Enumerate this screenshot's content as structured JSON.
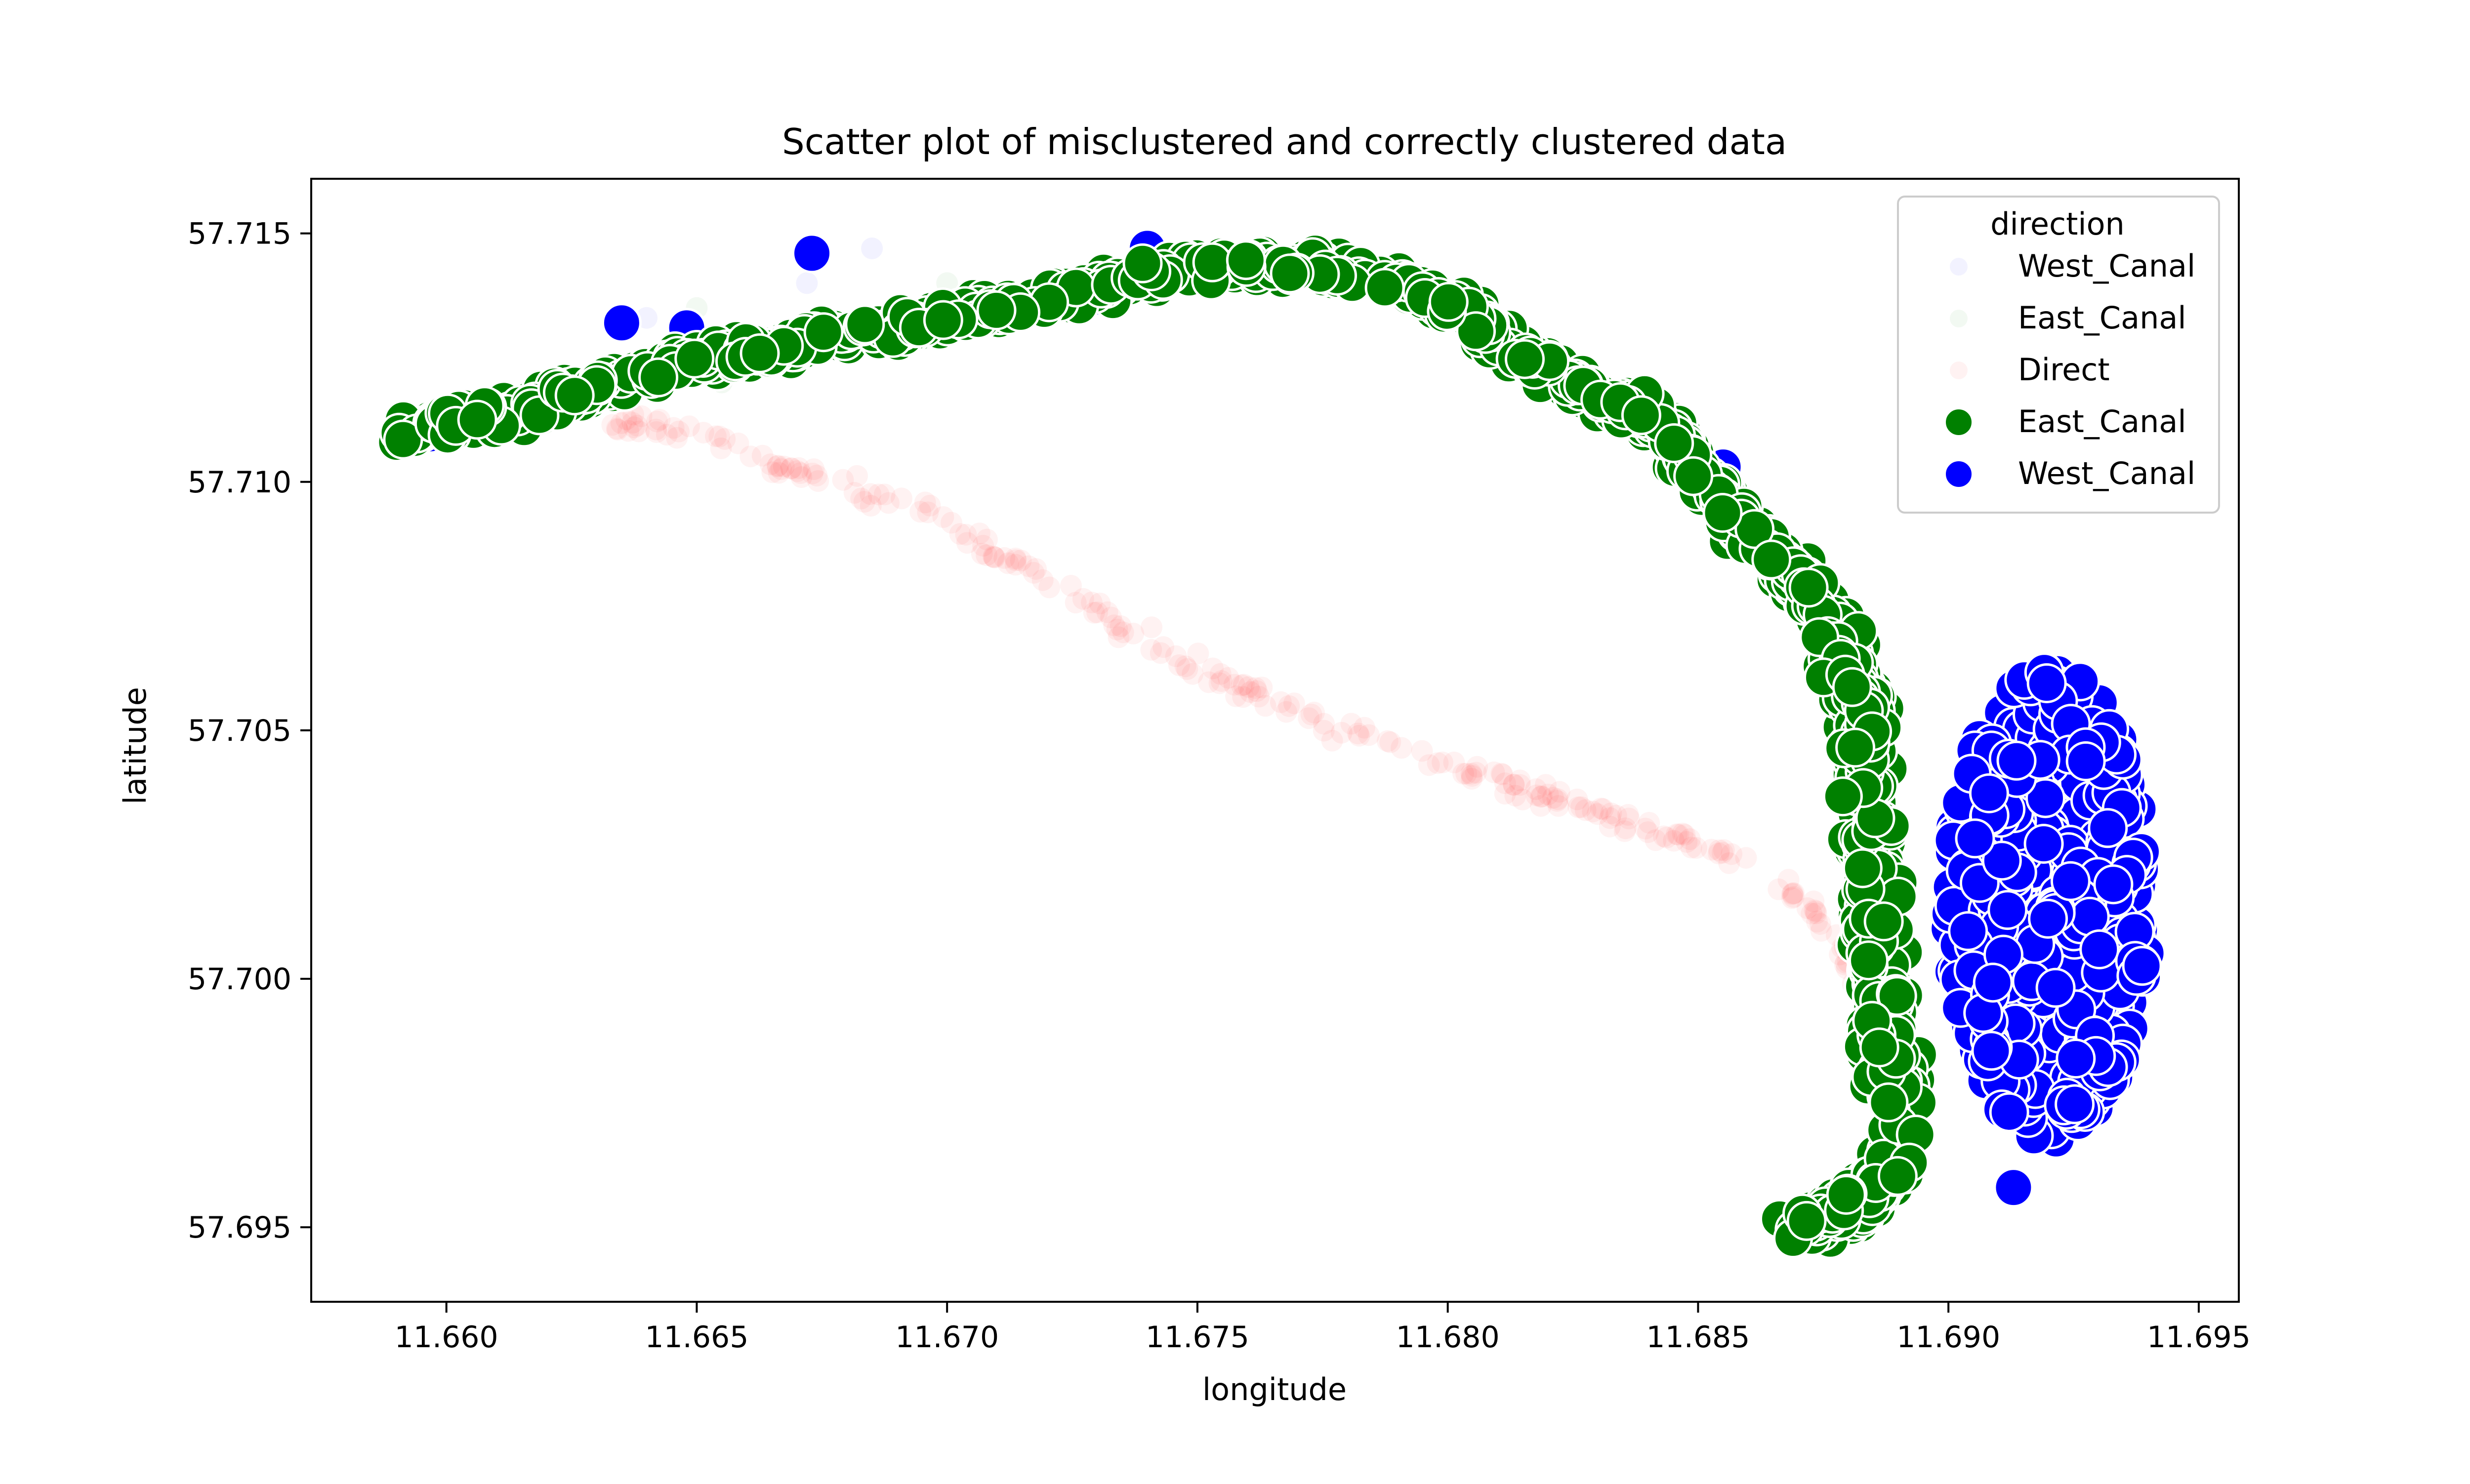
{
  "chart_data": {
    "type": "scatter",
    "title": "Scatter plot of misclustered and correctly clustered data",
    "xlabel": "longitude",
    "ylabel": "latitude",
    "xlim": [
      11.6573,
      11.6958
    ],
    "ylim": [
      57.6935,
      57.7161
    ],
    "x_ticks": [
      11.66,
      11.665,
      11.67,
      11.675,
      11.68,
      11.685,
      11.69,
      11.695
    ],
    "x_tick_labels": [
      "11.660",
      "11.665",
      "11.670",
      "11.675",
      "11.680",
      "11.685",
      "11.690",
      "11.695"
    ],
    "y_ticks": [
      57.695,
      57.7,
      57.705,
      57.71,
      57.715
    ],
    "y_tick_labels": [
      "57.695",
      "57.700",
      "57.705",
      "57.710",
      "57.715"
    ],
    "grid": false,
    "legend": {
      "title": "direction",
      "position": "top-right",
      "entries": [
        {
          "label": "West_Canal",
          "color": "#0000ff",
          "alpha": 0.05,
          "size": "small"
        },
        {
          "label": "East_Canal",
          "color": "#008000",
          "alpha": 0.05,
          "size": "small"
        },
        {
          "label": "Direct",
          "color": "#ff0000",
          "alpha": 0.05,
          "size": "small"
        },
        {
          "label": "East_Canal",
          "color": "#008000",
          "alpha": 1.0,
          "size": "large"
        },
        {
          "label": "West_Canal",
          "color": "#0000ff",
          "alpha": 1.0,
          "size": "large"
        }
      ]
    },
    "series": [
      {
        "name": "Direct (misclustered)",
        "color": "#ff0000",
        "alpha": 0.05,
        "size": "small",
        "path": [
          [
            11.6635,
            57.7112
          ],
          [
            11.665,
            57.711
          ],
          [
            11.6665,
            57.7104
          ],
          [
            11.668,
            57.7099
          ],
          [
            11.6695,
            57.7094
          ],
          [
            11.671,
            57.7086
          ],
          [
            11.6725,
            57.7077
          ],
          [
            11.674,
            57.7068
          ],
          [
            11.6755,
            57.706
          ],
          [
            11.677,
            57.7054
          ],
          [
            11.6785,
            57.7048
          ],
          [
            11.68,
            57.7043
          ],
          [
            11.6815,
            57.7038
          ],
          [
            11.683,
            57.7033
          ],
          [
            11.6845,
            57.7029
          ],
          [
            11.686,
            57.7024
          ],
          [
            11.6872,
            57.7015
          ],
          [
            11.6882,
            57.7
          ],
          [
            11.689,
            57.6985
          ]
        ]
      },
      {
        "name": "West_Canal (misclustered)",
        "color": "#0000ff",
        "alpha": 0.05,
        "size": "small",
        "points": [
          [
            11.664,
            57.7133
          ],
          [
            11.666,
            57.713
          ],
          [
            11.6685,
            57.7147
          ],
          [
            11.6672,
            57.714
          ]
        ]
      },
      {
        "name": "East_Canal (misclustered)",
        "color": "#008000",
        "alpha": 0.05,
        "size": "small",
        "points": [
          [
            11.665,
            57.7135
          ],
          [
            11.67,
            57.714
          ],
          [
            11.6655,
            57.712
          ]
        ]
      },
      {
        "name": "East_Canal",
        "color": "#008000",
        "alpha": 1.0,
        "size": "large",
        "path": [
          [
            11.659,
            57.711
          ],
          [
            11.661,
            57.7113
          ],
          [
            11.663,
            57.7119
          ],
          [
            11.665,
            57.7124
          ],
          [
            11.667,
            57.7128
          ],
          [
            11.669,
            57.7131
          ],
          [
            11.671,
            57.7135
          ],
          [
            11.673,
            57.7139
          ],
          [
            11.675,
            57.7143
          ],
          [
            11.677,
            57.7144
          ],
          [
            11.679,
            57.714
          ],
          [
            11.6805,
            57.7133
          ],
          [
            11.6815,
            57.7125
          ],
          [
            11.6828,
            57.7118
          ],
          [
            11.6842,
            57.7112
          ],
          [
            11.685,
            57.7102
          ],
          [
            11.686,
            57.709
          ],
          [
            11.687,
            57.7081
          ],
          [
            11.6878,
            57.707
          ],
          [
            11.6882,
            57.7055
          ],
          [
            11.6884,
            57.704
          ],
          [
            11.6885,
            57.702
          ],
          [
            11.6886,
            57.7
          ],
          [
            11.6888,
            57.6985
          ],
          [
            11.689,
            57.697
          ],
          [
            11.6888,
            57.696
          ],
          [
            11.688,
            57.6953
          ],
          [
            11.687,
            57.695
          ]
        ]
      },
      {
        "name": "West_Canal",
        "color": "#0000ff",
        "alpha": 1.0,
        "size": "large",
        "outliers": [
          [
            11.6635,
            57.7132
          ],
          [
            11.6648,
            57.7131
          ],
          [
            11.6673,
            57.7146
          ],
          [
            11.674,
            57.7147
          ],
          [
            11.6913,
            57.6958
          ],
          [
            11.6855,
            57.7103
          ]
        ],
        "cluster_center": [
          11.692,
          57.7015
        ],
        "cluster_extent": [
          [
            11.69,
            57.6965
          ],
          [
            11.694,
            57.706
          ]
        ]
      }
    ]
  }
}
